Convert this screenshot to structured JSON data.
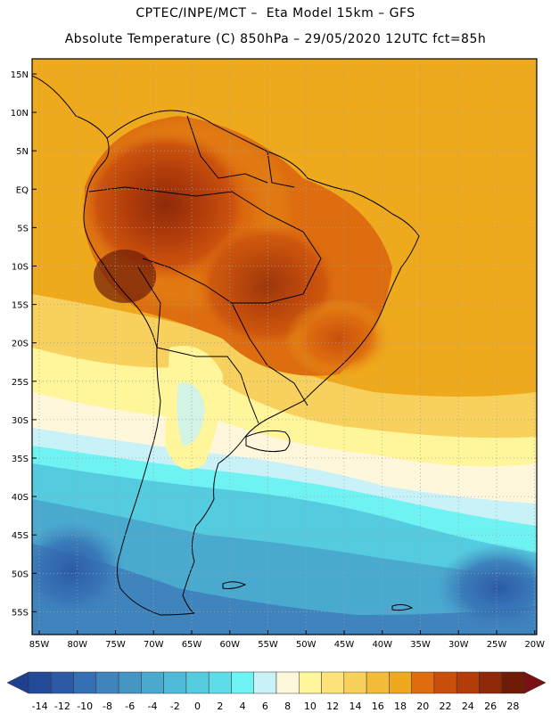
{
  "header": {
    "line1": "CPTEC/INPE/MCT –  Eta Model 15km – GFS",
    "line2": "Absolute Temperature (C) 850hPa – 29/05/2020 12UTC fct=85h"
  },
  "map": {
    "lat_labels": [
      "15N",
      "10N",
      "5N",
      "EQ",
      "5S",
      "10S",
      "15S",
      "20S",
      "25S",
      "30S",
      "35S",
      "40S",
      "45S",
      "50S",
      "55S"
    ],
    "lon_labels": [
      "85W",
      "80W",
      "75W",
      "70W",
      "65W",
      "60W",
      "55W",
      "50W",
      "45W",
      "40W",
      "35W",
      "30W",
      "25W",
      "20W"
    ]
  },
  "colorbar": {
    "labels": [
      "-14",
      "-12",
      "-10",
      "-8",
      "-6",
      "-4",
      "-2",
      "0",
      "2",
      "4",
      "6",
      "8",
      "10",
      "12",
      "14",
      "16",
      "18",
      "20",
      "22",
      "24",
      "26",
      "28"
    ],
    "colors": [
      "#234a99",
      "#2c5aa6",
      "#3670b4",
      "#3f84bd",
      "#4696c4",
      "#4aa9cf",
      "#4fbbd8",
      "#55cbe0",
      "#5edde8",
      "#6ff2f2",
      "#c8f2f8",
      "#fff7dc",
      "#fff59a",
      "#fde27a",
      "#f7d05e",
      "#f2bb3c",
      "#efa91c",
      "#dd6d0f",
      "#c94f0d",
      "#b23d0b",
      "#8e2a09",
      "#6e1c08"
    ],
    "under_color": "#1f3f8f",
    "over_color": "#7a1010"
  }
}
